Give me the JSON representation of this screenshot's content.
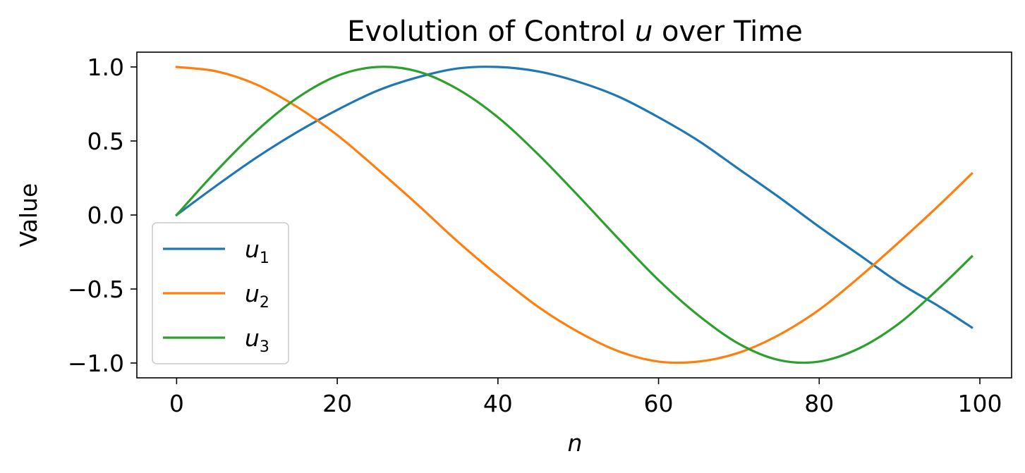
{
  "chart_data": {
    "type": "line",
    "title": "Evolution of Control u over Time",
    "title_parts": {
      "before": "Evolution of Control ",
      "variable": "u",
      "after": " over Time"
    },
    "xlabel": "n",
    "ylabel": "Value",
    "xlim": [
      -4.95,
      103.95
    ],
    "ylim": [
      -1.1,
      1.1
    ],
    "x_ticks": [
      0,
      20,
      40,
      60,
      80,
      100
    ],
    "x_tick_labels": [
      "0",
      "20",
      "40",
      "60",
      "80",
      "100"
    ],
    "y_ticks": [
      1.0,
      0.5,
      0.0,
      -0.5,
      -1.0
    ],
    "y_tick_labels": [
      "1.0",
      "0.5",
      "0.0",
      "−0.5",
      "−1.0"
    ],
    "grid": false,
    "legend_position": "lower-left",
    "x": [
      0,
      5,
      10,
      15,
      20,
      25,
      30,
      35,
      40,
      45,
      50,
      55,
      60,
      65,
      70,
      75,
      80,
      85,
      90,
      95,
      99
    ],
    "series": [
      {
        "name": "u1",
        "label_main": "u",
        "label_sub": "1",
        "color": "#1f77b4",
        "values": [
          0.0,
          0.2,
          0.39,
          0.56,
          0.71,
          0.84,
          0.93,
          0.99,
          1.0,
          0.97,
          0.9,
          0.8,
          0.66,
          0.5,
          0.31,
          0.12,
          -0.08,
          -0.27,
          -0.46,
          -0.62,
          -0.76
        ]
      },
      {
        "name": "u2",
        "label_main": "u",
        "label_sub": "2",
        "color": "#ff7f0e",
        "values": [
          1.0,
          0.97,
          0.88,
          0.73,
          0.54,
          0.31,
          0.07,
          -0.18,
          -0.41,
          -0.62,
          -0.79,
          -0.92,
          -0.99,
          -0.99,
          -0.93,
          -0.81,
          -0.64,
          -0.42,
          -0.18,
          0.07,
          0.28
        ]
      },
      {
        "name": "u3",
        "label_main": "u",
        "label_sub": "3",
        "color": "#2ca02c",
        "values": [
          0.0,
          0.3,
          0.57,
          0.79,
          0.94,
          1.0,
          0.97,
          0.85,
          0.66,
          0.41,
          0.13,
          -0.16,
          -0.44,
          -0.68,
          -0.87,
          -0.98,
          -0.99,
          -0.9,
          -0.73,
          -0.49,
          -0.28
        ]
      }
    ]
  }
}
